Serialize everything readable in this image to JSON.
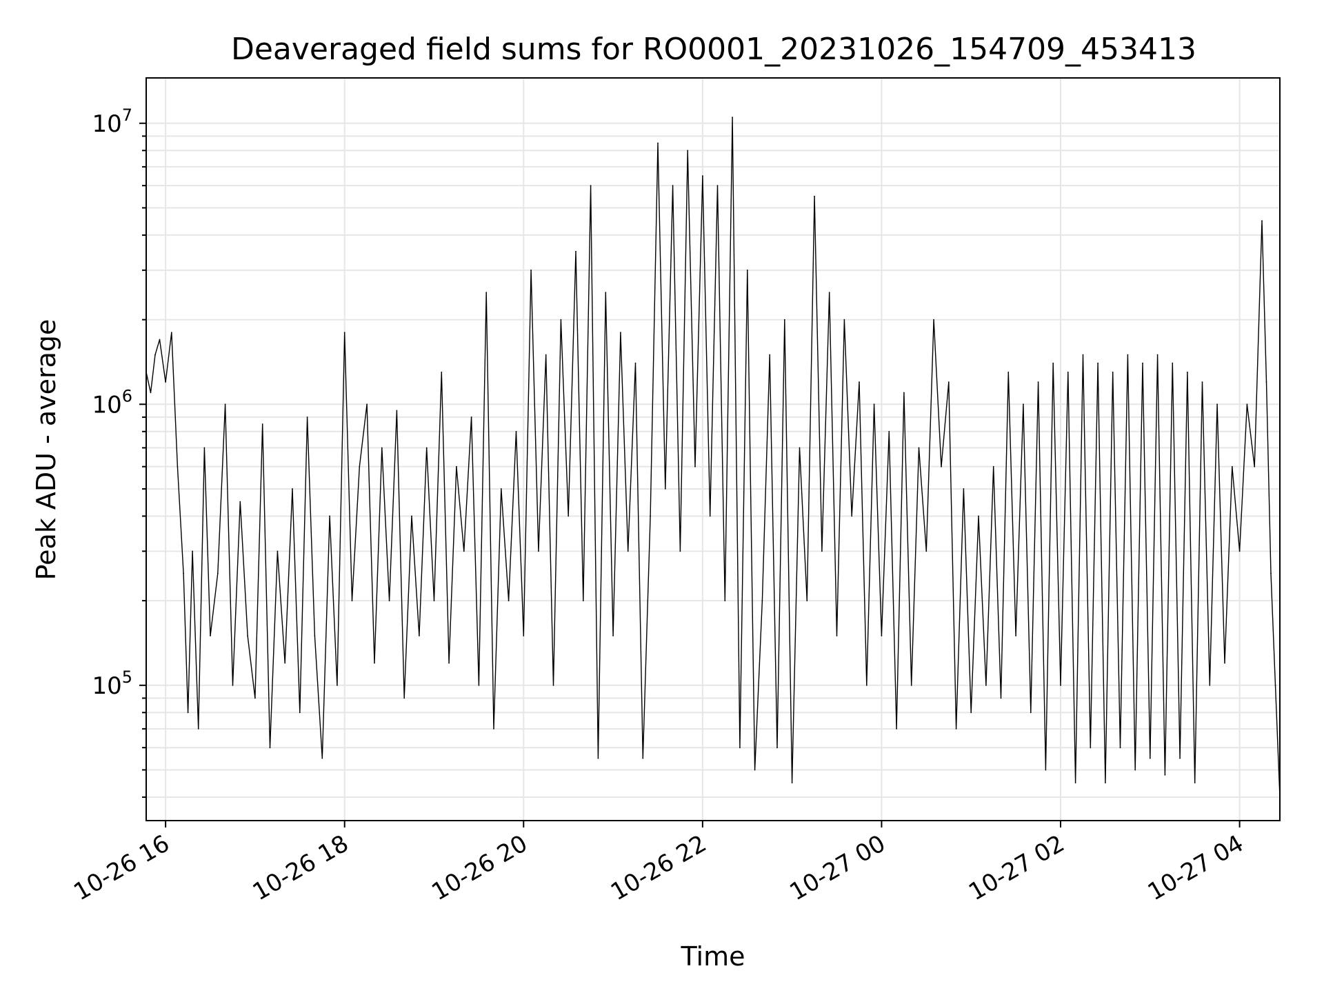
{
  "chart_data": {
    "type": "line",
    "title": "Deaveraged field sums for RO0001_20231026_154709_453413",
    "xlabel": "Time",
    "ylabel": "Peak ADU - average",
    "y_scale": "log",
    "ylim": [
      33000,
      14500000
    ],
    "xlim": [
      "2023-10-26T15:47",
      "2023-10-27T04:27"
    ],
    "grid": true,
    "line_color": "#000000",
    "x_ticks": [
      {
        "value": "2023-10-26T16:00",
        "label": "10-26 16"
      },
      {
        "value": "2023-10-26T18:00",
        "label": "10-26 18"
      },
      {
        "value": "2023-10-26T20:00",
        "label": "10-26 20"
      },
      {
        "value": "2023-10-26T22:00",
        "label": "10-26 22"
      },
      {
        "value": "2023-10-27T00:00",
        "label": "10-27 00"
      },
      {
        "value": "2023-10-27T02:00",
        "label": "10-27 02"
      },
      {
        "value": "2023-10-27T04:00",
        "label": "10-27 04"
      }
    ],
    "y_ticks": [
      {
        "value": 100000,
        "base": "10",
        "exp": "5"
      },
      {
        "value": 1000000,
        "base": "10",
        "exp": "6"
      },
      {
        "value": 10000000,
        "base": "10",
        "exp": "7"
      }
    ],
    "series": [
      {
        "points": [
          [
            "2023-10-26T15:47",
            1300000
          ],
          [
            "2023-10-26T15:50",
            1100000
          ],
          [
            "2023-10-26T15:53",
            1500000
          ],
          [
            "2023-10-26T15:56",
            1700000
          ],
          [
            "2023-10-26T16:00",
            1200000
          ],
          [
            "2023-10-26T16:04",
            1800000
          ],
          [
            "2023-10-26T16:08",
            600000
          ],
          [
            "2023-10-26T16:12",
            250000
          ],
          [
            "2023-10-26T16:15",
            80000
          ],
          [
            "2023-10-26T16:18",
            300000
          ],
          [
            "2023-10-26T16:22",
            70000
          ],
          [
            "2023-10-26T16:26",
            700000
          ],
          [
            "2023-10-26T16:30",
            150000
          ],
          [
            "2023-10-26T16:35",
            250000
          ],
          [
            "2023-10-26T16:40",
            1000000
          ],
          [
            "2023-10-26T16:45",
            100000
          ],
          [
            "2023-10-26T16:50",
            450000
          ],
          [
            "2023-10-26T16:55",
            150000
          ],
          [
            "2023-10-26T17:00",
            90000
          ],
          [
            "2023-10-26T17:05",
            850000
          ],
          [
            "2023-10-26T17:10",
            60000
          ],
          [
            "2023-10-26T17:15",
            300000
          ],
          [
            "2023-10-26T17:20",
            120000
          ],
          [
            "2023-10-26T17:25",
            500000
          ],
          [
            "2023-10-26T17:30",
            80000
          ],
          [
            "2023-10-26T17:35",
            900000
          ],
          [
            "2023-10-26T17:40",
            150000
          ],
          [
            "2023-10-26T17:45",
            55000
          ],
          [
            "2023-10-26T17:50",
            400000
          ],
          [
            "2023-10-26T17:55",
            100000
          ],
          [
            "2023-10-26T18:00",
            1800000
          ],
          [
            "2023-10-26T18:05",
            200000
          ],
          [
            "2023-10-26T18:10",
            600000
          ],
          [
            "2023-10-26T18:15",
            1000000
          ],
          [
            "2023-10-26T18:20",
            120000
          ],
          [
            "2023-10-26T18:25",
            700000
          ],
          [
            "2023-10-26T18:30",
            200000
          ],
          [
            "2023-10-26T18:35",
            950000
          ],
          [
            "2023-10-26T18:40",
            90000
          ],
          [
            "2023-10-26T18:45",
            400000
          ],
          [
            "2023-10-26T18:50",
            150000
          ],
          [
            "2023-10-26T18:55",
            700000
          ],
          [
            "2023-10-26T19:00",
            200000
          ],
          [
            "2023-10-26T19:05",
            1300000
          ],
          [
            "2023-10-26T19:10",
            120000
          ],
          [
            "2023-10-26T19:15",
            600000
          ],
          [
            "2023-10-26T19:20",
            300000
          ],
          [
            "2023-10-26T19:25",
            900000
          ],
          [
            "2023-10-26T19:30",
            100000
          ],
          [
            "2023-10-26T19:35",
            2500000
          ],
          [
            "2023-10-26T19:40",
            70000
          ],
          [
            "2023-10-26T19:45",
            500000
          ],
          [
            "2023-10-26T19:50",
            200000
          ],
          [
            "2023-10-26T19:55",
            800000
          ],
          [
            "2023-10-26T20:00",
            150000
          ],
          [
            "2023-10-26T20:05",
            3000000
          ],
          [
            "2023-10-26T20:10",
            300000
          ],
          [
            "2023-10-26T20:15",
            1500000
          ],
          [
            "2023-10-26T20:20",
            100000
          ],
          [
            "2023-10-26T20:25",
            2000000
          ],
          [
            "2023-10-26T20:30",
            400000
          ],
          [
            "2023-10-26T20:35",
            3500000
          ],
          [
            "2023-10-26T20:40",
            200000
          ],
          [
            "2023-10-26T20:45",
            6000000
          ],
          [
            "2023-10-26T20:50",
            55000
          ],
          [
            "2023-10-26T20:55",
            2500000
          ],
          [
            "2023-10-26T21:00",
            150000
          ],
          [
            "2023-10-26T21:05",
            1800000
          ],
          [
            "2023-10-26T21:10",
            300000
          ],
          [
            "2023-10-26T21:15",
            1400000
          ],
          [
            "2023-10-26T21:20",
            55000
          ],
          [
            "2023-10-26T21:25",
            400000
          ],
          [
            "2023-10-26T21:30",
            8500000
          ],
          [
            "2023-10-26T21:35",
            500000
          ],
          [
            "2023-10-26T21:40",
            6000000
          ],
          [
            "2023-10-26T21:45",
            300000
          ],
          [
            "2023-10-26T21:50",
            8000000
          ],
          [
            "2023-10-26T21:55",
            600000
          ],
          [
            "2023-10-26T22:00",
            6500000
          ],
          [
            "2023-10-26T22:05",
            400000
          ],
          [
            "2023-10-26T22:10",
            6000000
          ],
          [
            "2023-10-26T22:15",
            200000
          ],
          [
            "2023-10-26T22:20",
            10500000
          ],
          [
            "2023-10-26T22:25",
            60000
          ],
          [
            "2023-10-26T22:30",
            3000000
          ],
          [
            "2023-10-26T22:35",
            50000
          ],
          [
            "2023-10-26T22:40",
            200000
          ],
          [
            "2023-10-26T22:45",
            1500000
          ],
          [
            "2023-10-26T22:50",
            60000
          ],
          [
            "2023-10-26T22:55",
            2000000
          ],
          [
            "2023-10-26T23:00",
            45000
          ],
          [
            "2023-10-26T23:05",
            700000
          ],
          [
            "2023-10-26T23:10",
            200000
          ],
          [
            "2023-10-26T23:15",
            5500000
          ],
          [
            "2023-10-26T23:20",
            300000
          ],
          [
            "2023-10-26T23:25",
            2500000
          ],
          [
            "2023-10-26T23:30",
            150000
          ],
          [
            "2023-10-26T23:35",
            2000000
          ],
          [
            "2023-10-26T23:40",
            400000
          ],
          [
            "2023-10-26T23:45",
            1200000
          ],
          [
            "2023-10-26T23:50",
            100000
          ],
          [
            "2023-10-26T23:55",
            1000000
          ],
          [
            "2023-10-27T00:00",
            150000
          ],
          [
            "2023-10-27T00:05",
            800000
          ],
          [
            "2023-10-27T00:10",
            70000
          ],
          [
            "2023-10-27T00:15",
            1100000
          ],
          [
            "2023-10-27T00:20",
            100000
          ],
          [
            "2023-10-27T00:25",
            700000
          ],
          [
            "2023-10-27T00:30",
            300000
          ],
          [
            "2023-10-27T00:35",
            2000000
          ],
          [
            "2023-10-27T00:40",
            600000
          ],
          [
            "2023-10-27T00:45",
            1200000
          ],
          [
            "2023-10-27T00:50",
            70000
          ],
          [
            "2023-10-27T00:55",
            500000
          ],
          [
            "2023-10-27T01:00",
            80000
          ],
          [
            "2023-10-27T01:05",
            400000
          ],
          [
            "2023-10-27T01:10",
            100000
          ],
          [
            "2023-10-27T01:15",
            600000
          ],
          [
            "2023-10-27T01:20",
            90000
          ],
          [
            "2023-10-27T01:25",
            1300000
          ],
          [
            "2023-10-27T01:30",
            150000
          ],
          [
            "2023-10-27T01:35",
            1000000
          ],
          [
            "2023-10-27T01:40",
            80000
          ],
          [
            "2023-10-27T01:45",
            1200000
          ],
          [
            "2023-10-27T01:50",
            50000
          ],
          [
            "2023-10-27T01:55",
            1400000
          ],
          [
            "2023-10-27T02:00",
            100000
          ],
          [
            "2023-10-27T02:05",
            1300000
          ],
          [
            "2023-10-27T02:10",
            45000
          ],
          [
            "2023-10-27T02:15",
            1500000
          ],
          [
            "2023-10-27T02:20",
            60000
          ],
          [
            "2023-10-27T02:25",
            1400000
          ],
          [
            "2023-10-27T02:30",
            45000
          ],
          [
            "2023-10-27T02:35",
            1300000
          ],
          [
            "2023-10-27T02:40",
            60000
          ],
          [
            "2023-10-27T02:45",
            1500000
          ],
          [
            "2023-10-27T02:50",
            50000
          ],
          [
            "2023-10-27T02:55",
            1400000
          ],
          [
            "2023-10-27T03:00",
            55000
          ],
          [
            "2023-10-27T03:05",
            1500000
          ],
          [
            "2023-10-27T03:10",
            48000
          ],
          [
            "2023-10-27T03:15",
            1400000
          ],
          [
            "2023-10-27T03:20",
            55000
          ],
          [
            "2023-10-27T03:25",
            1300000
          ],
          [
            "2023-10-27T03:30",
            45000
          ],
          [
            "2023-10-27T03:35",
            1200000
          ],
          [
            "2023-10-27T03:40",
            100000
          ],
          [
            "2023-10-27T03:45",
            1000000
          ],
          [
            "2023-10-27T03:50",
            120000
          ],
          [
            "2023-10-27T03:55",
            600000
          ],
          [
            "2023-10-27T04:00",
            300000
          ],
          [
            "2023-10-27T04:05",
            1000000
          ],
          [
            "2023-10-27T04:10",
            600000
          ],
          [
            "2023-10-27T04:15",
            4500000
          ],
          [
            "2023-10-27T04:18",
            1200000
          ],
          [
            "2023-10-27T04:21",
            250000
          ],
          [
            "2023-10-27T04:24",
            100000
          ],
          [
            "2023-10-27T04:27",
            40000
          ]
        ]
      }
    ]
  }
}
